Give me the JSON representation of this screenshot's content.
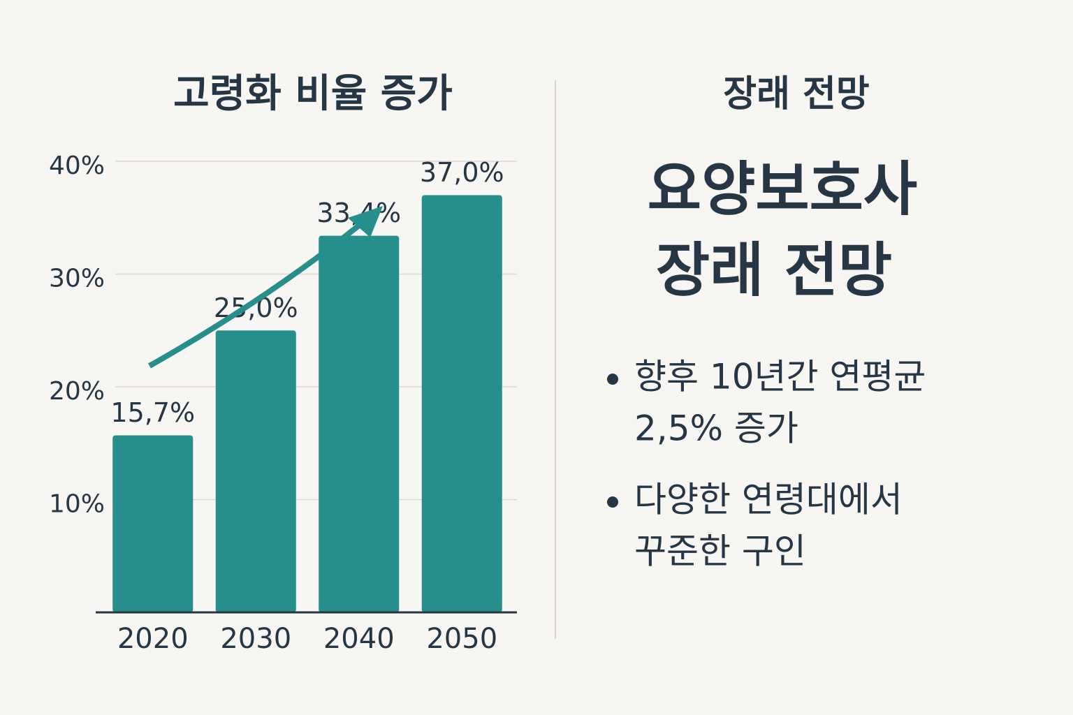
{
  "chart_data": {
    "type": "bar",
    "title": "고령화 비율 증가",
    "categories": [
      "2020",
      "2030",
      "2040",
      "2050"
    ],
    "values": [
      15.7,
      25.0,
      33.4,
      37.0
    ],
    "value_labels": [
      "15,7%",
      "25,0%",
      "33,4%",
      "37,0%"
    ],
    "color": "#268f8c",
    "ylim": [
      0,
      40
    ],
    "yticks": [
      {
        "value": 10,
        "label": "10%"
      },
      {
        "value": 20,
        "label": "20%"
      },
      {
        "value": 30,
        "label": "30%"
      },
      {
        "value": 40,
        "label": "40%"
      }
    ],
    "grid": true
  },
  "outlook": {
    "heading": "장래 전망",
    "headline": [
      "요양보호사",
      "장래 전망"
    ],
    "bullets": [
      [
        "향후 10년간 연평균",
        "2,5% 증가"
      ],
      [
        "다양한 연령대에서",
        "꾸준한 구인"
      ]
    ]
  }
}
